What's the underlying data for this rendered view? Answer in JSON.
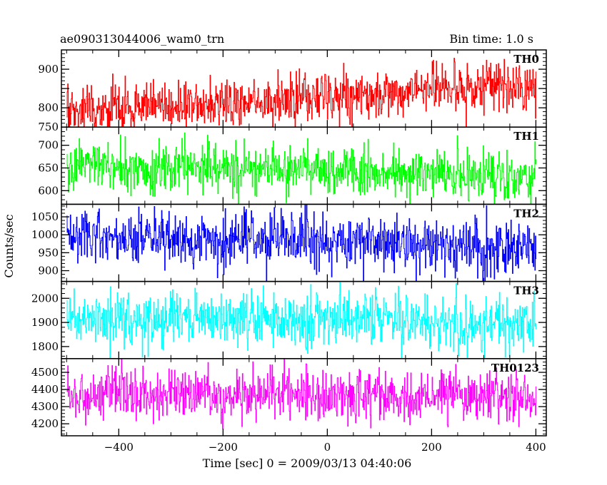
{
  "header": {
    "left_title": "ae090313044006_wam0_trn",
    "right_title": "Bin time: 1.0 s"
  },
  "chart_data": {
    "type": "line",
    "xlabel": "Time [sec] 0 = 2009/03/13 04:40:06",
    "ylabel": "Counts/sec",
    "xlim": [
      -510,
      420
    ],
    "x_ticks": [
      -400,
      -200,
      0,
      200,
      400
    ],
    "x_tick_labels": [
      "−400",
      "−200",
      "0",
      "200",
      "400"
    ],
    "x_range": [
      -500,
      400
    ],
    "bin_time": 1.0,
    "panels": [
      {
        "name": "TH0",
        "color": "#ff0000",
        "ylim": [
          750,
          950
        ],
        "y_ticks": [
          750,
          800,
          850,
          900
        ],
        "y_tick_labels": [
          "750",
          "800",
          "",
          "900"
        ],
        "trend": [
          [
            -500,
            795
          ],
          [
            -200,
            815
          ],
          [
            100,
            835
          ],
          [
            400,
            860
          ]
        ],
        "noise": 32
      },
      {
        "name": "TH1",
        "color": "#00ff00",
        "ylim": [
          570,
          740
        ],
        "y_ticks": [
          600,
          650,
          700
        ],
        "y_tick_labels": [
          "600",
          "650",
          "700"
        ],
        "trend": [
          [
            -500,
            652
          ],
          [
            0,
            645
          ],
          [
            400,
            632
          ]
        ],
        "noise": 27
      },
      {
        "name": "TH2",
        "color": "#0000ff",
        "ylim": [
          870,
          1085
        ],
        "y_ticks": [
          900,
          950,
          1000,
          1050
        ],
        "y_tick_labels": [
          "900",
          "950",
          "1000",
          "1050"
        ],
        "trend": [
          [
            -500,
            995
          ],
          [
            -150,
            985
          ],
          [
            400,
            965
          ]
        ],
        "noise": 38
      },
      {
        "name": "TH3",
        "color": "#00ffff",
        "ylim": [
          1750,
          2070
        ],
        "y_ticks": [
          1800,
          1900,
          2000
        ],
        "y_tick_labels": [
          "1800",
          "1900",
          "2000"
        ],
        "trend": [
          [
            -500,
            1925
          ],
          [
            0,
            1910
          ],
          [
            400,
            1890
          ]
        ],
        "noise": 55
      },
      {
        "name": "TH0123",
        "color": "#ff00ff",
        "ylim": [
          4130,
          4580
        ],
        "y_ticks": [
          4200,
          4300,
          4400,
          4500
        ],
        "y_tick_labels": [
          "4200",
          "4300",
          "4400",
          "4500"
        ],
        "trend": [
          [
            -500,
            4375
          ],
          [
            0,
            4365
          ],
          [
            400,
            4350
          ]
        ],
        "noise": 75
      }
    ]
  }
}
